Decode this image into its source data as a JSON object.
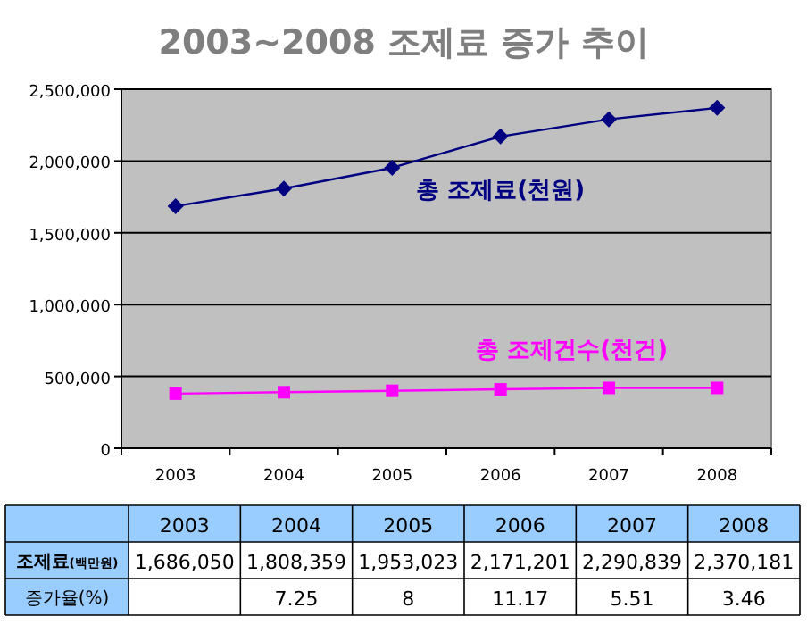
{
  "chart_data": {
    "type": "line",
    "title": "2003~2008 조제료 증가 추이",
    "categories": [
      "2003",
      "2004",
      "2005",
      "2006",
      "2007",
      "2008"
    ],
    "series": [
      {
        "name": "총 조제료(천원)",
        "color": "#000080",
        "marker": "diamond",
        "values": [
          1686050,
          1808359,
          1953023,
          2171201,
          2290839,
          2370181
        ],
        "value_labels": [
          "1,686,050",
          "1,808,359",
          "1,953,023",
          "2,171,201",
          "2,290,839",
          "2,370,181"
        ]
      },
      {
        "name": "총 조제건수(천건)",
        "color": "#ff00ff",
        "marker": "square",
        "values": [
          380000,
          390000,
          400000,
          410000,
          420000,
          420000
        ]
      }
    ],
    "ylim": [
      0,
      2500000
    ],
    "yticks": [
      {
        "value": 0,
        "label": "0"
      },
      {
        "value": 500000,
        "label": "500,000"
      },
      {
        "value": 1000000,
        "label": "1,000,000"
      },
      {
        "value": 1500000,
        "label": "1,500,000"
      },
      {
        "value": 2000000,
        "label": "2,000,000"
      },
      {
        "value": 2500000,
        "label": "2,500,000"
      }
    ],
    "grid": "y",
    "annotations": [
      "조제료$_{(백만원)}$",
      "증가율(%)",
      "7.25",
      "8",
      "11.17",
      "5.51",
      "3.46"
    ]
  }
}
